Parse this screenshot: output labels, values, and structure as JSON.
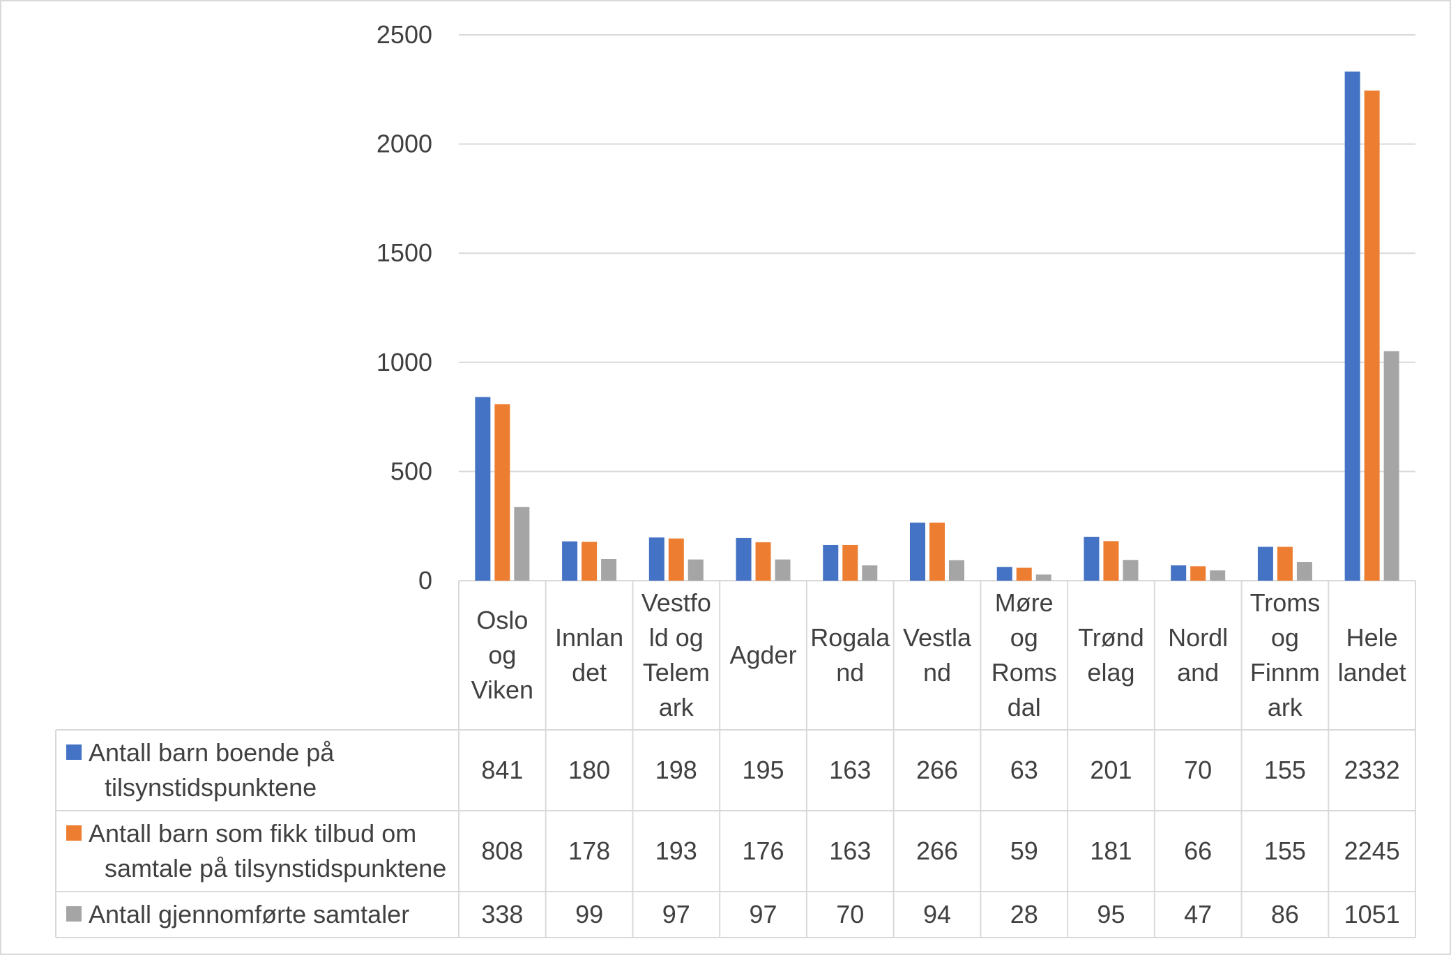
{
  "chart_data": {
    "type": "bar",
    "title": "",
    "xlabel": "",
    "ylabel": "",
    "ylim": [
      0,
      2500
    ],
    "yticks": [
      0,
      500,
      1000,
      1500,
      2000,
      2500
    ],
    "grid": true,
    "legend": "data-table-left",
    "categories": [
      [
        "Oslo",
        "og",
        "Viken"
      ],
      [
        "Innlan",
        "det"
      ],
      [
        "Vestfo",
        "ld og",
        "Telem",
        "ark"
      ],
      [
        "Agder"
      ],
      [
        "Rogala",
        "nd"
      ],
      [
        "Vestla",
        "nd"
      ],
      [
        "Møre",
        "og",
        "Roms",
        "dal"
      ],
      [
        "Trønd",
        "elag"
      ],
      [
        "Nordl",
        "and"
      ],
      [
        "Troms",
        "og",
        "Finnm",
        "ark"
      ],
      [
        "Hele",
        "landet"
      ]
    ],
    "series": [
      {
        "name_lines": [
          "Antall barn boende på",
          "tilsynstidspunktene"
        ],
        "color": "#4472C4",
        "values": [
          841,
          180,
          198,
          195,
          163,
          266,
          63,
          201,
          70,
          155,
          2332
        ]
      },
      {
        "name_lines": [
          "Antall barn som fikk tilbud om",
          "samtale på tilsynstidspunktene"
        ],
        "color": "#ED7D31",
        "values": [
          808,
          178,
          193,
          176,
          163,
          266,
          59,
          181,
          66,
          155,
          2245
        ]
      },
      {
        "name_lines": [
          "Antall gjennomførte samtaler"
        ],
        "color": "#A5A5A5",
        "values": [
          338,
          99,
          97,
          97,
          70,
          94,
          28,
          95,
          47,
          86,
          1051
        ]
      }
    ]
  }
}
